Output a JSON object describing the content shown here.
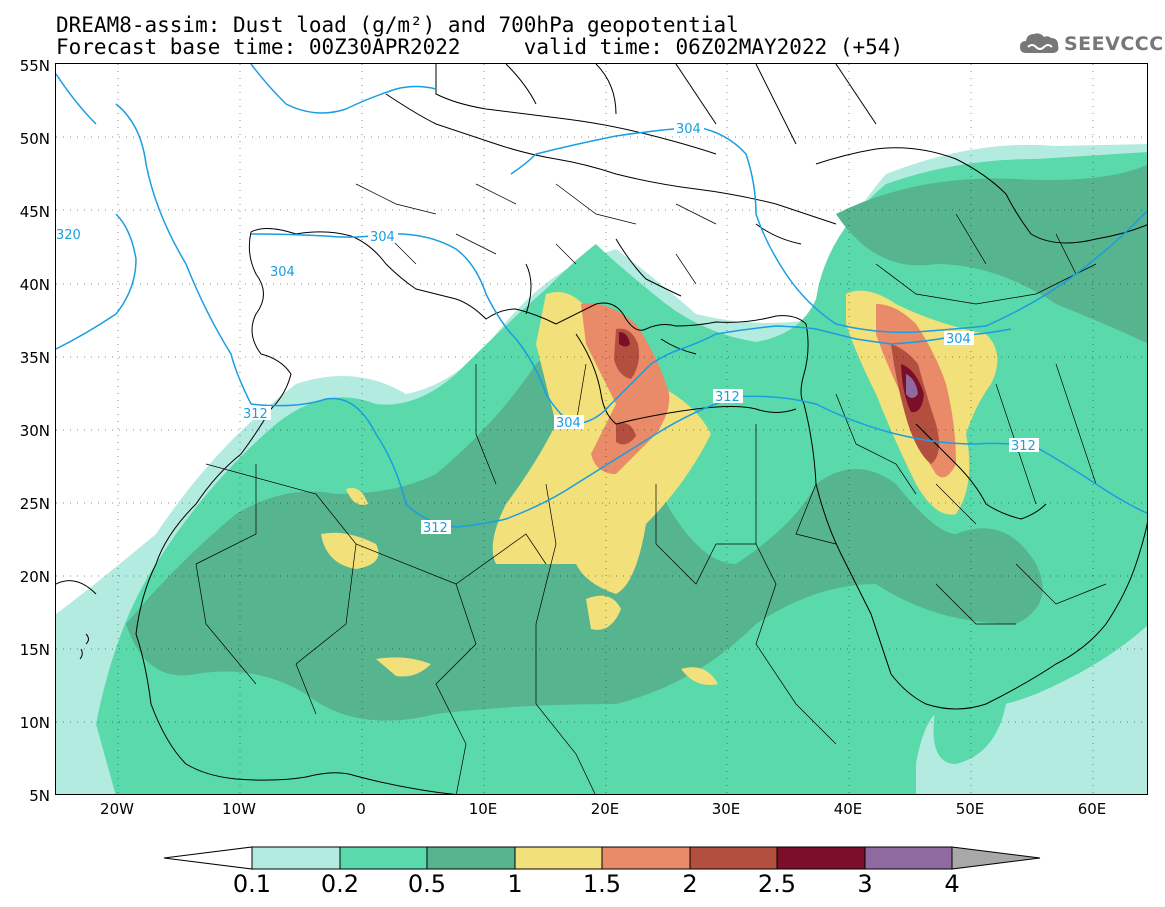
{
  "header": {
    "title_line1": "DREAM8-assim: Dust load (g/m²) and 700hPa geopotential",
    "title_line2": "Forecast base time: 00Z30APR2022     valid time: 06Z02MAY2022 (+54)",
    "logo_text": "SEEVCCC"
  },
  "axes": {
    "lat_labels": [
      "55N",
      "50N",
      "45N",
      "40N",
      "35N",
      "30N",
      "25N",
      "20N",
      "15N",
      "10N",
      "5N"
    ],
    "lon_labels": [
      "20W",
      "10W",
      "0",
      "10E",
      "20E",
      "30E",
      "40E",
      "50E",
      "60E"
    ]
  },
  "contours": {
    "labels": [
      "304",
      "304",
      "304",
      "304",
      "304",
      "312",
      "312",
      "312",
      "312",
      "320"
    ],
    "color": "#1a9ee0"
  },
  "colorbar": {
    "labels": [
      "0.1",
      "0.2",
      "0.5",
      "1",
      "1.5",
      "2",
      "2.5",
      "3",
      "4"
    ],
    "colors": [
      "#b3ebe0",
      "#5ad9ab",
      "#56b48e",
      "#f2e07a",
      "#e98a68",
      "#b24f3e",
      "#7d0e2a",
      "#8f6aa0",
      "#a8a8a8"
    ]
  },
  "palette": {
    "l1": "#b3ebe0",
    "l2": "#5ad9ab",
    "l3": "#56b48e",
    "l4": "#f2e07a",
    "l5": "#e98a68",
    "l6": "#b24f3e",
    "l7": "#7d0e2a",
    "l8": "#8f6aa0"
  }
}
